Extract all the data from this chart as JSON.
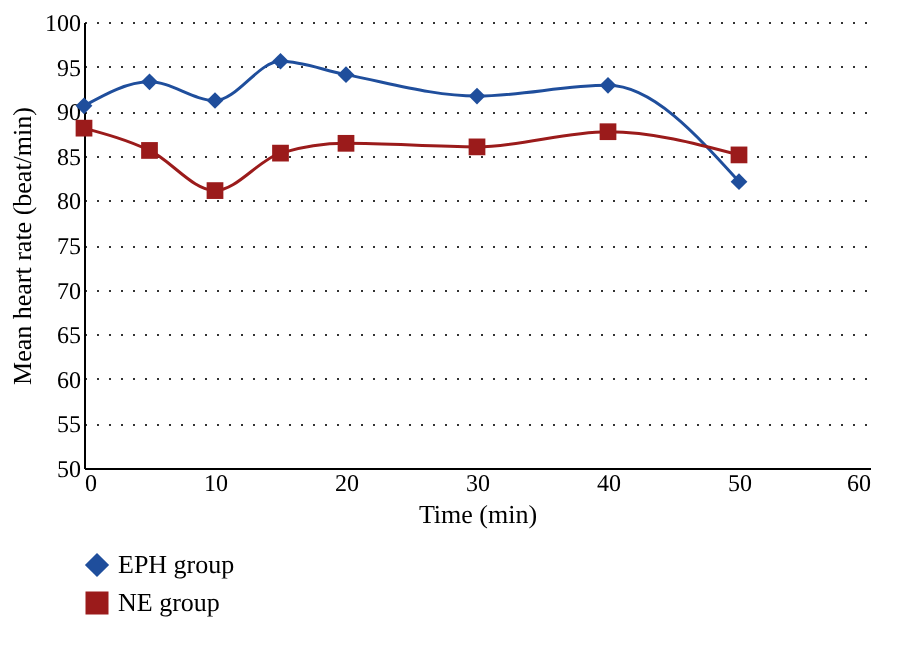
{
  "chart_data": {
    "type": "line",
    "xlabel": "Time (min)",
    "ylabel": "Mean heart rate (beat/min)",
    "xlim": [
      0,
      60
    ],
    "xticks": [
      0,
      10,
      20,
      30,
      40,
      50,
      60
    ],
    "ylim": [
      50,
      100
    ],
    "yticks": [
      50,
      55,
      60,
      65,
      70,
      75,
      80,
      85,
      90,
      95,
      100
    ],
    "grid": "y",
    "legend": "bottom",
    "line_style": "solid",
    "series": [
      {
        "name": "EPH group",
        "color": "#1f4e9c",
        "marker": "diamond",
        "x": [
          0,
          5,
          10,
          15,
          20,
          30,
          40,
          50
        ],
        "values": [
          90.6,
          93.3,
          91.2,
          95.6,
          94.1,
          91.7,
          92.9,
          82.1
        ]
      },
      {
        "name": "NE group",
        "color": "#9b1b1b",
        "marker": "square",
        "x": [
          0,
          5,
          10,
          15,
          20,
          30,
          40,
          50
        ],
        "values": [
          88.1,
          85.6,
          81.1,
          85.3,
          86.4,
          86.0,
          87.7,
          85.1
        ]
      }
    ]
  }
}
